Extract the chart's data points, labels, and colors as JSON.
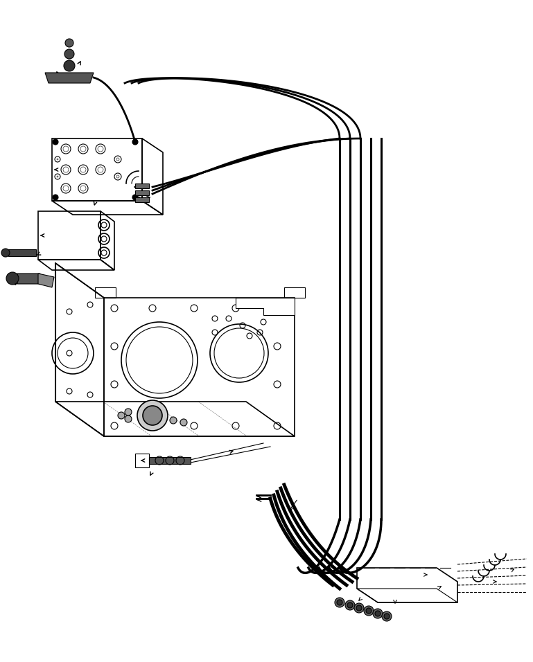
{
  "title": "",
  "bg_color": "#ffffff",
  "line_color": "#000000",
  "fig_width": 7.69,
  "fig_height": 9.56,
  "dpi": 100
}
